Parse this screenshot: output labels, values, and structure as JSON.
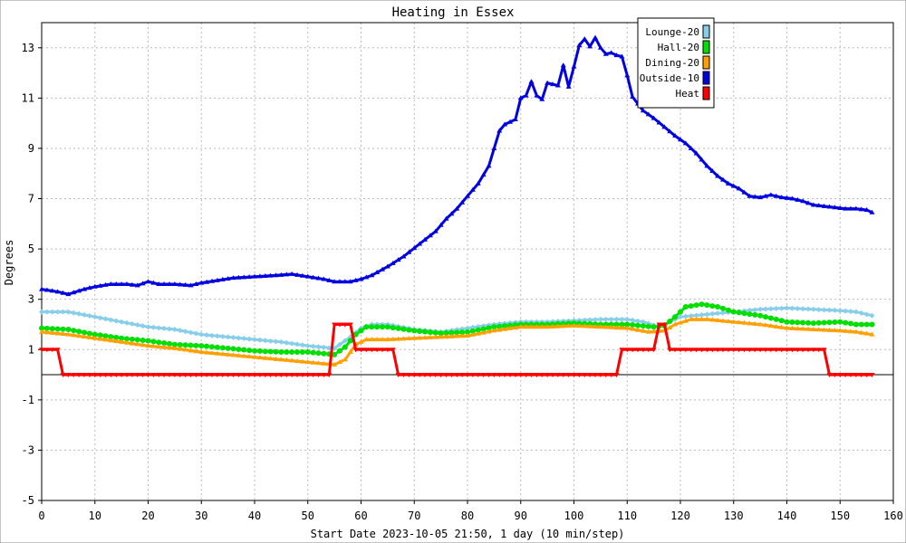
{
  "chart_data": {
    "type": "line",
    "title": "Heating in Essex",
    "xlabel": "Start Date 2023-10-05 21:50, 1 day (10 min/step)",
    "ylabel": "Degrees",
    "xlim": [
      0,
      160
    ],
    "ylim": [
      -5,
      14
    ],
    "xticks": [
      0,
      10,
      20,
      30,
      40,
      50,
      60,
      70,
      80,
      90,
      100,
      110,
      120,
      130,
      140,
      150,
      160
    ],
    "yticks": [
      -5,
      -3,
      -1,
      1,
      3,
      5,
      7,
      9,
      11,
      13
    ],
    "grid": true,
    "legend_position": "top-right",
    "series": [
      {
        "name": "Lounge-20",
        "color": "#87ceeb",
        "marker": "diamond",
        "points": [
          [
            0,
            2.5
          ],
          [
            5,
            2.5
          ],
          [
            10,
            2.3
          ],
          [
            15,
            2.1
          ],
          [
            20,
            1.9
          ],
          [
            25,
            1.8
          ],
          [
            30,
            1.6
          ],
          [
            35,
            1.5
          ],
          [
            40,
            1.4
          ],
          [
            45,
            1.3
          ],
          [
            50,
            1.15
          ],
          [
            55,
            1.05
          ],
          [
            58,
            1.5
          ],
          [
            60,
            1.85
          ],
          [
            62,
            2.0
          ],
          [
            65,
            2.0
          ],
          [
            70,
            1.8
          ],
          [
            75,
            1.7
          ],
          [
            80,
            1.85
          ],
          [
            85,
            2.0
          ],
          [
            90,
            2.1
          ],
          [
            95,
            2.1
          ],
          [
            100,
            2.15
          ],
          [
            105,
            2.2
          ],
          [
            110,
            2.2
          ],
          [
            113,
            2.1
          ],
          [
            116,
            1.9
          ],
          [
            118,
            2.1
          ],
          [
            120,
            2.3
          ],
          [
            125,
            2.4
          ],
          [
            130,
            2.5
          ],
          [
            135,
            2.6
          ],
          [
            140,
            2.65
          ],
          [
            145,
            2.6
          ],
          [
            150,
            2.55
          ],
          [
            153,
            2.5
          ],
          [
            156,
            2.35
          ]
        ]
      },
      {
        "name": "Hall-20",
        "color": "#00e000",
        "marker": "circle",
        "points": [
          [
            0,
            1.85
          ],
          [
            5,
            1.8
          ],
          [
            10,
            1.6
          ],
          [
            15,
            1.45
          ],
          [
            20,
            1.35
          ],
          [
            25,
            1.2
          ],
          [
            30,
            1.15
          ],
          [
            35,
            1.05
          ],
          [
            40,
            0.95
          ],
          [
            45,
            0.9
          ],
          [
            50,
            0.9
          ],
          [
            55,
            0.8
          ],
          [
            57,
            1.1
          ],
          [
            59,
            1.6
          ],
          [
            61,
            1.9
          ],
          [
            65,
            1.9
          ],
          [
            70,
            1.75
          ],
          [
            75,
            1.65
          ],
          [
            80,
            1.7
          ],
          [
            85,
            1.9
          ],
          [
            90,
            2.0
          ],
          [
            95,
            2.0
          ],
          [
            100,
            2.05
          ],
          [
            105,
            2.0
          ],
          [
            110,
            2.0
          ],
          [
            115,
            1.9
          ],
          [
            117,
            1.95
          ],
          [
            119,
            2.3
          ],
          [
            121,
            2.7
          ],
          [
            124,
            2.8
          ],
          [
            127,
            2.7
          ],
          [
            130,
            2.5
          ],
          [
            135,
            2.35
          ],
          [
            140,
            2.1
          ],
          [
            145,
            2.05
          ],
          [
            150,
            2.1
          ],
          [
            153,
            2.0
          ],
          [
            156,
            2.0
          ]
        ]
      },
      {
        "name": "Dining-20",
        "color": "#ffa000",
        "marker": "triangle",
        "points": [
          [
            0,
            1.7
          ],
          [
            5,
            1.6
          ],
          [
            10,
            1.45
          ],
          [
            15,
            1.3
          ],
          [
            20,
            1.15
          ],
          [
            25,
            1.05
          ],
          [
            30,
            0.9
          ],
          [
            35,
            0.8
          ],
          [
            40,
            0.7
          ],
          [
            45,
            0.6
          ],
          [
            50,
            0.5
          ],
          [
            55,
            0.4
          ],
          [
            57,
            0.6
          ],
          [
            59,
            1.2
          ],
          [
            61,
            1.4
          ],
          [
            65,
            1.4
          ],
          [
            70,
            1.45
          ],
          [
            75,
            1.5
          ],
          [
            80,
            1.55
          ],
          [
            85,
            1.75
          ],
          [
            90,
            1.9
          ],
          [
            95,
            1.9
          ],
          [
            100,
            1.95
          ],
          [
            105,
            1.9
          ],
          [
            110,
            1.85
          ],
          [
            114,
            1.7
          ],
          [
            117,
            1.75
          ],
          [
            119,
            2.0
          ],
          [
            122,
            2.2
          ],
          [
            125,
            2.2
          ],
          [
            130,
            2.1
          ],
          [
            135,
            2.0
          ],
          [
            140,
            1.85
          ],
          [
            145,
            1.8
          ],
          [
            150,
            1.75
          ],
          [
            153,
            1.7
          ],
          [
            156,
            1.6
          ]
        ]
      },
      {
        "name": "Outside-10",
        "color": "#0000e0",
        "marker": "triangle",
        "points": [
          [
            0,
            3.4
          ],
          [
            3,
            3.3
          ],
          [
            5,
            3.2
          ],
          [
            8,
            3.4
          ],
          [
            10,
            3.5
          ],
          [
            13,
            3.6
          ],
          [
            16,
            3.6
          ],
          [
            18,
            3.55
          ],
          [
            20,
            3.7
          ],
          [
            22,
            3.6
          ],
          [
            25,
            3.6
          ],
          [
            28,
            3.55
          ],
          [
            30,
            3.65
          ],
          [
            33,
            3.75
          ],
          [
            36,
            3.85
          ],
          [
            40,
            3.9
          ],
          [
            44,
            3.95
          ],
          [
            47,
            4.0
          ],
          [
            50,
            3.9
          ],
          [
            53,
            3.8
          ],
          [
            55,
            3.7
          ],
          [
            58,
            3.7
          ],
          [
            60,
            3.8
          ],
          [
            62,
            3.95
          ],
          [
            65,
            4.3
          ],
          [
            68,
            4.7
          ],
          [
            71,
            5.2
          ],
          [
            74,
            5.7
          ],
          [
            76,
            6.2
          ],
          [
            78,
            6.6
          ],
          [
            80,
            7.1
          ],
          [
            82,
            7.6
          ],
          [
            84,
            8.3
          ],
          [
            85,
            9.0
          ],
          [
            86,
            9.7
          ],
          [
            87,
            9.95
          ],
          [
            89,
            10.15
          ],
          [
            90,
            11.0
          ],
          [
            91,
            11.1
          ],
          [
            92,
            11.65
          ],
          [
            93,
            11.1
          ],
          [
            94,
            10.95
          ],
          [
            95,
            11.6
          ],
          [
            96,
            11.55
          ],
          [
            97,
            11.5
          ],
          [
            98,
            12.3
          ],
          [
            99,
            11.45
          ],
          [
            100,
            12.25
          ],
          [
            101,
            13.1
          ],
          [
            102,
            13.35
          ],
          [
            103,
            13.05
          ],
          [
            104,
            13.4
          ],
          [
            105,
            13.0
          ],
          [
            106,
            12.75
          ],
          [
            107,
            12.8
          ],
          [
            108,
            12.7
          ],
          [
            109,
            12.65
          ],
          [
            110,
            11.9
          ],
          [
            111,
            11.05
          ],
          [
            113,
            10.5
          ],
          [
            115,
            10.2
          ],
          [
            117,
            9.85
          ],
          [
            119,
            9.5
          ],
          [
            121,
            9.2
          ],
          [
            123,
            8.8
          ],
          [
            125,
            8.3
          ],
          [
            127,
            7.9
          ],
          [
            129,
            7.6
          ],
          [
            131,
            7.4
          ],
          [
            133,
            7.1
          ],
          [
            135,
            7.05
          ],
          [
            137,
            7.15
          ],
          [
            139,
            7.05
          ],
          [
            141,
            7.0
          ],
          [
            143,
            6.9
          ],
          [
            145,
            6.75
          ],
          [
            147,
            6.7
          ],
          [
            149,
            6.65
          ],
          [
            151,
            6.6
          ],
          [
            153,
            6.6
          ],
          [
            155,
            6.55
          ],
          [
            156,
            6.45
          ]
        ]
      },
      {
        "name": "Heat",
        "color": "#ff0000",
        "marker": "triangle-down",
        "points": [
          [
            0,
            1.0
          ],
          [
            3,
            1.0
          ],
          [
            4,
            0.0
          ],
          [
            54,
            0.0
          ],
          [
            55,
            2.0
          ],
          [
            58,
            2.0
          ],
          [
            59,
            1.0
          ],
          [
            66,
            1.0
          ],
          [
            67,
            0.0
          ],
          [
            108,
            0.0
          ],
          [
            109,
            1.0
          ],
          [
            115,
            1.0
          ],
          [
            116,
            2.0
          ],
          [
            117,
            2.0
          ],
          [
            118,
            1.0
          ],
          [
            147,
            1.0
          ],
          [
            148,
            0.0
          ],
          [
            156,
            0.0
          ]
        ]
      }
    ]
  }
}
